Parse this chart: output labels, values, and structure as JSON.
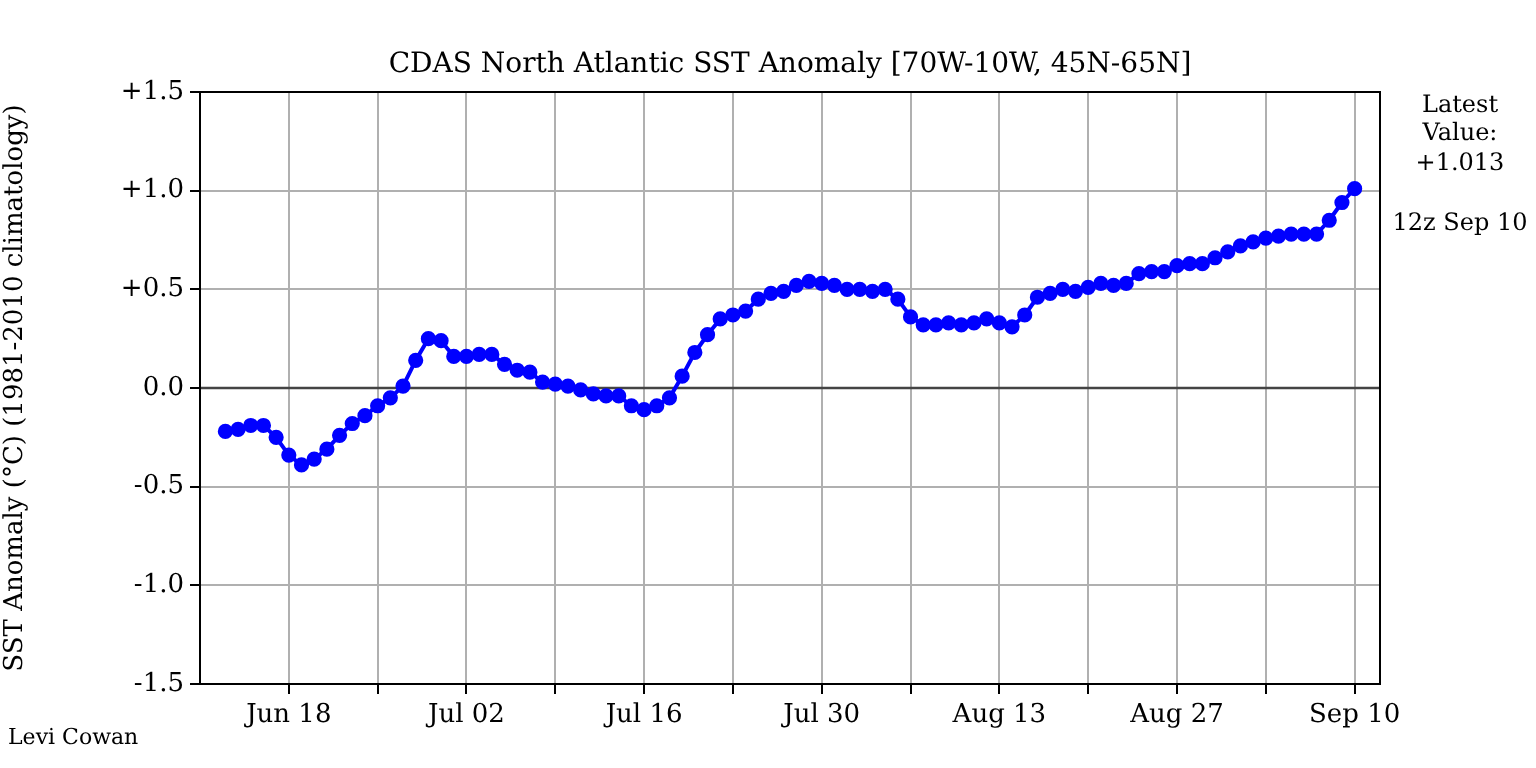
{
  "chart_data": {
    "type": "line",
    "title": "CDAS North Atlantic SST Anomaly [70W-10W, 45N-65N]",
    "ylabel": "SST Anomaly (°C) (1981-2010 climatology)",
    "x": [
      "--06-13",
      "--06-14",
      "--06-15",
      "--06-16",
      "--06-17",
      "--06-18",
      "--06-19",
      "--06-20",
      "--06-21",
      "--06-22",
      "--06-23",
      "--06-24",
      "--06-25",
      "--06-26",
      "--06-27",
      "--06-28",
      "--06-29",
      "--06-30",
      "--07-01",
      "--07-02",
      "--07-03",
      "--07-04",
      "--07-05",
      "--07-06",
      "--07-07",
      "--07-08",
      "--07-09",
      "--07-10",
      "--07-11",
      "--07-12",
      "--07-13",
      "--07-14",
      "--07-15",
      "--07-16",
      "--07-17",
      "--07-18",
      "--07-19",
      "--07-20",
      "--07-21",
      "--07-22",
      "--07-23",
      "--07-24",
      "--07-25",
      "--07-26",
      "--07-27",
      "--07-28",
      "--07-29",
      "--07-30",
      "--07-31",
      "--08-01",
      "--08-02",
      "--08-03",
      "--08-04",
      "--08-05",
      "--08-06",
      "--08-07",
      "--08-08",
      "--08-09",
      "--08-10",
      "--08-11",
      "--08-12",
      "--08-13",
      "--08-14",
      "--08-15",
      "--08-16",
      "--08-17",
      "--08-18",
      "--08-19",
      "--08-20",
      "--08-21",
      "--08-22",
      "--08-23",
      "--08-24",
      "--08-25",
      "--08-26",
      "--08-27",
      "--08-28",
      "--08-29",
      "--08-30",
      "--08-31",
      "--09-01",
      "--09-02",
      "--09-03",
      "--09-04",
      "--09-05",
      "--09-06",
      "--09-07",
      "--09-08",
      "--09-09",
      "--09-10"
    ],
    "series": [
      {
        "color": "#0000ff",
        "values": [
          -0.22,
          -0.21,
          -0.19,
          -0.19,
          -0.25,
          -0.34,
          -0.39,
          -0.36,
          -0.31,
          -0.24,
          -0.18,
          -0.14,
          -0.09,
          -0.05,
          0.01,
          0.14,
          0.25,
          0.24,
          0.16,
          0.16,
          0.17,
          0.17,
          0.12,
          0.09,
          0.08,
          0.03,
          0.02,
          0.01,
          -0.01,
          -0.03,
          -0.04,
          -0.04,
          -0.09,
          -0.11,
          -0.09,
          -0.05,
          0.06,
          0.18,
          0.27,
          0.35,
          0.37,
          0.39,
          0.45,
          0.48,
          0.49,
          0.52,
          0.54,
          0.53,
          0.52,
          0.5,
          0.5,
          0.49,
          0.5,
          0.45,
          0.36,
          0.32,
          0.32,
          0.33,
          0.32,
          0.33,
          0.35,
          0.33,
          0.31,
          0.37,
          0.46,
          0.48,
          0.5,
          0.49,
          0.51,
          0.53,
          0.52,
          0.53,
          0.58,
          0.59,
          0.59,
          0.62,
          0.63,
          0.63,
          0.66,
          0.69,
          0.72,
          0.74,
          0.76,
          0.77,
          0.78,
          0.78,
          0.78,
          0.85,
          0.94,
          1.01
        ]
      }
    ],
    "xlim": [
      "--06-11",
      "--09-12"
    ],
    "xticks": [
      {
        "value": "--06-18",
        "label": "Jun 18"
      },
      {
        "value": "--06-25",
        "label": null
      },
      {
        "value": "--07-02",
        "label": "Jul 02"
      },
      {
        "value": "--07-09",
        "label": null
      },
      {
        "value": "--07-16",
        "label": "Jul 16"
      },
      {
        "value": "--07-23",
        "label": null
      },
      {
        "value": "--07-30",
        "label": "Jul 30"
      },
      {
        "value": "--08-06",
        "label": null
      },
      {
        "value": "--08-13",
        "label": "Aug 13"
      },
      {
        "value": "--08-20",
        "label": null
      },
      {
        "value": "--08-27",
        "label": "Aug 27"
      },
      {
        "value": "--09-03",
        "label": null
      },
      {
        "value": "--09-10",
        "label": "Sep 10"
      }
    ],
    "ylim": [
      -1.5,
      1.5
    ],
    "yticks": [
      {
        "value": -1.5,
        "label": "-1.5"
      },
      {
        "value": -1.0,
        "label": "-1.0"
      },
      {
        "value": -0.5,
        "label": "-0.5"
      },
      {
        "value": 0,
        "label": "0.0"
      },
      {
        "value": 0.5,
        "label": "+0.5"
      },
      {
        "value": 1.0,
        "label": "+1.0"
      },
      {
        "value": 1.5,
        "label": "+1.5"
      }
    ],
    "ref_lines": [
      {
        "axis": "y",
        "value": 0,
        "color": "#444444"
      }
    ],
    "annotations": [
      "Latest\nValue:\n+1.013",
      "12z Sep 10",
      "Levi Cowan"
    ],
    "grid": true,
    "legend": false,
    "marker": "circle",
    "line_style": "solid"
  }
}
